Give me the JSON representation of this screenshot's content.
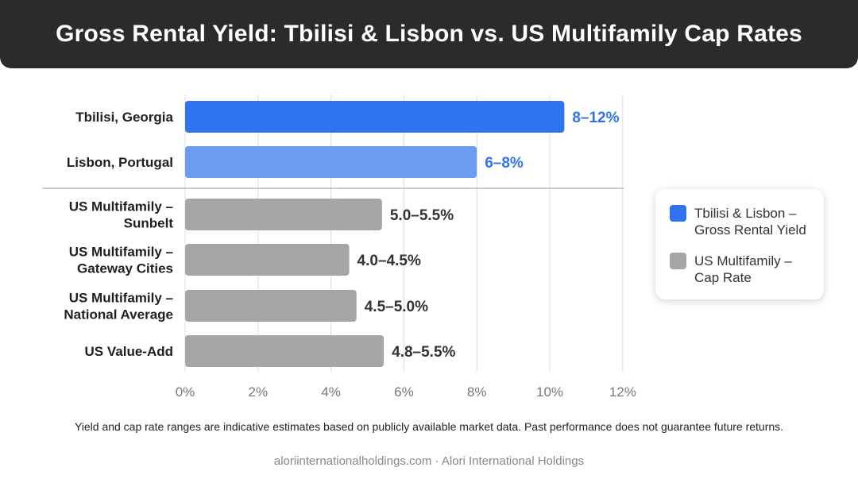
{
  "header": {
    "title": "Gross Rental Yield: Tbilisi & Lisbon vs. US Multifamily Cap Rates"
  },
  "chart_data": {
    "type": "bar",
    "orientation": "horizontal",
    "title": "Gross Rental Yield: Tbilisi & Lisbon vs. US Multifamily Cap Rates",
    "xlabel": "",
    "ylabel": "",
    "xlim": [
      0,
      12
    ],
    "ticks": [
      0,
      2,
      4,
      6,
      8,
      10,
      12
    ],
    "tick_labels": [
      "0%",
      "2%",
      "4%",
      "6%",
      "8%",
      "10%",
      "12%"
    ],
    "grid": "vertical",
    "legend_position": "right",
    "series": [
      {
        "name": "Tbilisi & Lisbon – Gross Rental Yield",
        "color": "#2f73f0",
        "light_color": "#6a9cf2"
      },
      {
        "name": "US Multifamily – Cap Rate",
        "color": "#a6a6a6"
      }
    ],
    "bars": [
      {
        "label": [
          "Tbilisi, Georgia"
        ],
        "value": 10.4,
        "display": "8–12%",
        "series": 0,
        "shade": "dark",
        "label_color": "#2f73f0"
      },
      {
        "label": [
          "Lisbon, Portugal"
        ],
        "value": 8.0,
        "display": "6–8%",
        "series": 0,
        "shade": "light",
        "label_color": "#2f73f0"
      },
      {
        "label": [
          "US Multifamily –",
          "Sunbelt"
        ],
        "value": 5.4,
        "display": "5.0–5.5%",
        "series": 1,
        "label_color": "#333333"
      },
      {
        "label": [
          "US Multifamily –",
          "Gateway Cities"
        ],
        "value": 4.5,
        "display": "4.0–4.5%",
        "series": 1,
        "label_color": "#333333"
      },
      {
        "label": [
          "US Multifamily –",
          "National Average"
        ],
        "value": 4.7,
        "display": "4.5–5.0%",
        "series": 1,
        "label_color": "#333333"
      },
      {
        "label": [
          "US Value-Add"
        ],
        "value": 5.45,
        "display": "4.8–5.5%",
        "series": 1,
        "label_color": "#333333"
      }
    ]
  },
  "legend": {
    "items": [
      {
        "text": "Tbilisi & Lisbon –\nGross Rental Yield",
        "color": "#2f73f0"
      },
      {
        "text": "US Multifamily –\nCap Rate",
        "color": "#a6a6a6"
      }
    ]
  },
  "footnote": "Yield and cap rate ranges are indicative estimates based on publicly available market data. Past performance does not guarantee future returns.",
  "footer": "aloriinternationalholdings.com · Alori International Holdings"
}
